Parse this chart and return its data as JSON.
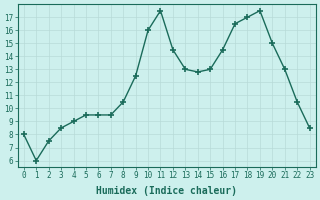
{
  "x": [
    0,
    1,
    2,
    3,
    4,
    5,
    6,
    7,
    8,
    9,
    10,
    11,
    12,
    13,
    14,
    15,
    16,
    17,
    18,
    19,
    20,
    21,
    22,
    23
  ],
  "y": [
    8,
    6,
    7.5,
    8.5,
    9,
    9.5,
    9.5,
    9.5,
    10.5,
    12.5,
    16,
    17.5,
    14.5,
    13,
    12.8,
    13,
    14.5,
    16.5,
    17,
    17.5,
    15,
    13,
    10.5,
    8.5
  ],
  "line_color": "#1a6b5a",
  "marker": "+",
  "marker_size": 4,
  "linewidth": 1.0,
  "bg_color": "#cdf0ed",
  "grid_color": "#b8dbd8",
  "xlabel": "Humidex (Indice chaleur)",
  "ylabel": "",
  "xlim": [
    -0.5,
    23.5
  ],
  "ylim": [
    5.5,
    18
  ],
  "yticks": [
    6,
    7,
    8,
    9,
    10,
    11,
    12,
    13,
    14,
    15,
    16,
    17
  ],
  "xticks": [
    0,
    1,
    2,
    3,
    4,
    5,
    6,
    7,
    8,
    9,
    10,
    11,
    12,
    13,
    14,
    15,
    16,
    17,
    18,
    19,
    20,
    21,
    22,
    23
  ],
  "tick_color": "#1a6b5a",
  "label_fontsize": 5.5,
  "xlabel_fontsize": 7,
  "spine_color": "#1a6b5a"
}
